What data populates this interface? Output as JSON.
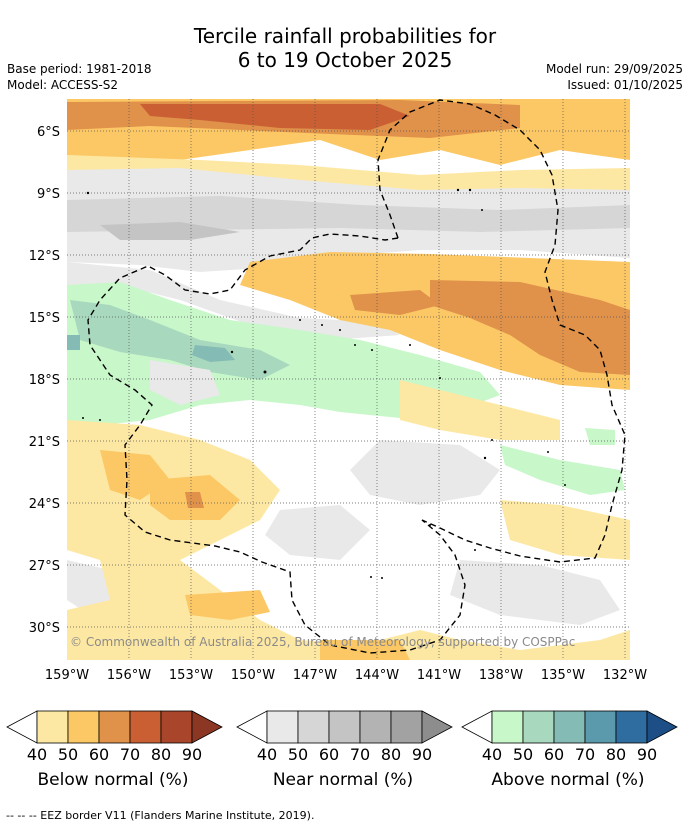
{
  "title": {
    "line1": "Tercile rainfall probabilities for",
    "line2": "6 to 19 October 2025"
  },
  "meta": {
    "base_period": "Base period: 1981-2018",
    "model": "Model: ACCESS-S2",
    "model_run": "Model run: 29/09/2025",
    "issued": "Issued: 01/10/2025"
  },
  "map": {
    "lat_labels": [
      "6°S",
      "9°S",
      "12°S",
      "15°S",
      "18°S",
      "21°S",
      "24°S",
      "27°S",
      "30°S"
    ],
    "lon_labels": [
      "159°W",
      "156°W",
      "153°W",
      "150°W",
      "147°W",
      "144°W",
      "141°W",
      "138°W",
      "135°W",
      "132°W"
    ],
    "credit": "© Commonwealth of Australia 2025, Bureau of Meteorology, supported by COSPPac"
  },
  "colorbars": [
    {
      "name": "below",
      "label": "Below normal (%)",
      "colors": [
        "#ffffff",
        "#fde8a3",
        "#fcc865",
        "#e0914a",
        "#c95f33",
        "#a8452a",
        "#8c3724"
      ],
      "ticks": [
        "40",
        "50",
        "60",
        "70",
        "80",
        "90"
      ]
    },
    {
      "name": "near",
      "label": "Near normal (%)",
      "colors": [
        "#ffffff",
        "#e9e9e9",
        "#d6d6d6",
        "#c4c4c4",
        "#b3b3b3",
        "#a2a2a2",
        "#8d8d8d"
      ],
      "ticks": [
        "40",
        "50",
        "60",
        "70",
        "80",
        "90"
      ]
    },
    {
      "name": "above",
      "label": "Above normal (%)",
      "colors": [
        "#ffffff",
        "#c8f7c9",
        "#a8d8be",
        "#84bbb4",
        "#5b9aac",
        "#2f6da0",
        "#1d4f86"
      ],
      "ticks": [
        "40",
        "50",
        "60",
        "70",
        "80",
        "90"
      ]
    }
  ],
  "footer": "--  --  -- EEZ border V11 (Flanders Marine Institute, 2019)."
}
